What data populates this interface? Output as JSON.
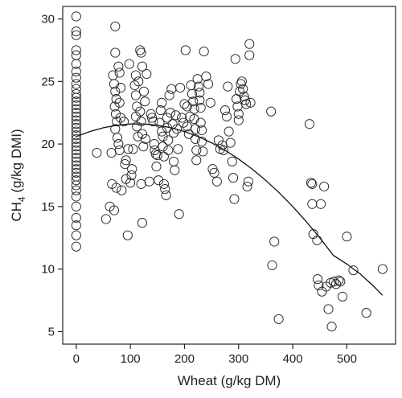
{
  "chart_data": {
    "type": "scatter",
    "title": "",
    "xlabel": "Wheat (g/kg DM)",
    "ylabel_main": "CH",
    "ylabel_sub": "4",
    "ylabel_rest": " (g/kg DMI)",
    "xlim": [
      -25,
      590
    ],
    "ylim": [
      4,
      31
    ],
    "xticks": [
      0,
      100,
      200,
      300,
      400,
      500
    ],
    "yticks": [
      5,
      10,
      15,
      20,
      25,
      30
    ],
    "grid": false,
    "legend": "none",
    "marker": "open-circle",
    "points": [
      [
        0,
        30.2
      ],
      [
        0,
        29
      ],
      [
        0,
        28.7
      ],
      [
        0,
        27.5
      ],
      [
        0,
        27.1
      ],
      [
        0,
        26.4
      ],
      [
        0,
        25.8
      ],
      [
        0,
        25.3
      ],
      [
        0,
        24.8
      ],
      [
        0,
        24.4
      ],
      [
        0,
        24
      ],
      [
        0,
        23.7
      ],
      [
        0,
        23.4
      ],
      [
        0,
        23.1
      ],
      [
        0,
        22.8
      ],
      [
        0,
        22.5
      ],
      [
        0,
        22.2
      ],
      [
        0,
        21.9
      ],
      [
        0,
        21.6
      ],
      [
        0,
        21.3
      ],
      [
        0,
        21
      ],
      [
        0,
        20.7
      ],
      [
        0,
        20.4
      ],
      [
        0,
        20.1
      ],
      [
        0,
        19.8
      ],
      [
        0,
        19.5
      ],
      [
        0,
        19.2
      ],
      [
        0,
        18.9
      ],
      [
        0,
        18.6
      ],
      [
        0,
        18.3
      ],
      [
        0,
        18
      ],
      [
        0,
        17.7
      ],
      [
        0,
        17.4
      ],
      [
        0,
        17.1
      ],
      [
        0,
        16.7
      ],
      [
        0,
        16.3
      ],
      [
        0,
        15.8
      ],
      [
        0,
        15
      ],
      [
        0,
        14.1
      ],
      [
        0,
        13.5
      ],
      [
        0,
        12.7
      ],
      [
        0,
        11.8
      ],
      [
        38,
        19.3
      ],
      [
        55,
        14
      ],
      [
        62,
        15
      ],
      [
        65,
        19.3
      ],
      [
        66,
        16.8
      ],
      [
        70,
        14.7
      ],
      [
        72,
        29.4
      ],
      [
        72,
        27.3
      ],
      [
        74,
        16.5
      ],
      [
        78,
        26.2
      ],
      [
        68,
        25.5
      ],
      [
        70,
        24.8
      ],
      [
        72,
        24.2
      ],
      [
        74,
        23.6
      ],
      [
        71,
        23
      ],
      [
        73,
        22.4
      ],
      [
        75,
        21.8
      ],
      [
        72,
        21.2
      ],
      [
        76,
        20.5
      ],
      [
        78,
        20
      ],
      [
        80,
        25.7
      ],
      [
        82,
        24.5
      ],
      [
        80,
        23.3
      ],
      [
        82,
        22.1
      ],
      [
        80,
        19.5
      ],
      [
        84,
        16.3
      ],
      [
        88,
        21.8
      ],
      [
        90,
        18.4
      ],
      [
        92,
        18.7
      ],
      [
        95,
        12.7
      ],
      [
        92,
        17.2
      ],
      [
        96,
        19.6
      ],
      [
        98,
        26.4
      ],
      [
        100,
        16.9
      ],
      [
        102,
        17.5
      ],
      [
        103,
        18
      ],
      [
        105,
        19.6
      ],
      [
        108,
        24.7
      ],
      [
        110,
        23.9
      ],
      [
        112,
        23
      ],
      [
        110,
        22.2
      ],
      [
        112,
        21.4
      ],
      [
        114,
        20.6
      ],
      [
        110,
        25.5
      ],
      [
        115,
        25
      ],
      [
        118,
        27.5
      ],
      [
        120,
        27.3
      ],
      [
        122,
        26.2
      ],
      [
        118,
        22.6
      ],
      [
        120,
        21.8
      ],
      [
        122,
        20.8
      ],
      [
        124,
        19.8
      ],
      [
        120,
        16.8
      ],
      [
        122,
        13.7
      ],
      [
        125,
        24.2
      ],
      [
        127,
        23.4
      ],
      [
        130,
        25.6
      ],
      [
        128,
        20.4
      ],
      [
        135,
        17
      ],
      [
        138,
        22.4
      ],
      [
        140,
        22.1
      ],
      [
        142,
        21.8
      ],
      [
        144,
        20
      ],
      [
        145,
        19.5
      ],
      [
        147,
        19.2
      ],
      [
        150,
        19.1
      ],
      [
        148,
        18.2
      ],
      [
        152,
        17.1
      ],
      [
        154,
        21.7
      ],
      [
        156,
        22.7
      ],
      [
        158,
        23.3
      ],
      [
        158,
        21
      ],
      [
        160,
        20.6
      ],
      [
        160,
        19.8
      ],
      [
        162,
        19
      ],
      [
        162,
        16.8
      ],
      [
        164,
        16.4
      ],
      [
        166,
        15.9
      ],
      [
        168,
        22.1
      ],
      [
        168,
        21.3
      ],
      [
        170,
        20.3
      ],
      [
        170,
        19.5
      ],
      [
        172,
        23.9
      ],
      [
        174,
        22.5
      ],
      [
        176,
        24.4
      ],
      [
        178,
        21.6
      ],
      [
        180,
        20.9
      ],
      [
        180,
        18.6
      ],
      [
        182,
        17.9
      ],
      [
        184,
        22.3
      ],
      [
        186,
        21.2
      ],
      [
        188,
        19.6
      ],
      [
        190,
        14.4
      ],
      [
        192,
        24.5
      ],
      [
        195,
        22.1
      ],
      [
        198,
        21.7
      ],
      [
        200,
        23.2
      ],
      [
        202,
        27.5
      ],
      [
        205,
        23
      ],
      [
        205,
        21.4
      ],
      [
        208,
        20.8
      ],
      [
        210,
        22.2
      ],
      [
        212,
        24.7
      ],
      [
        214,
        24
      ],
      [
        216,
        23.4
      ],
      [
        218,
        22.8
      ],
      [
        218,
        22
      ],
      [
        220,
        21.2
      ],
      [
        220,
        20.4
      ],
      [
        222,
        19.5
      ],
      [
        222,
        18.7
      ],
      [
        224,
        25.2
      ],
      [
        226,
        24.6
      ],
      [
        228,
        24.1
      ],
      [
        228,
        23.5
      ],
      [
        230,
        22.9
      ],
      [
        230,
        21.7
      ],
      [
        232,
        21.1
      ],
      [
        232,
        20.2
      ],
      [
        234,
        19.4
      ],
      [
        236,
        27.4
      ],
      [
        240,
        25.4
      ],
      [
        244,
        24.8
      ],
      [
        248,
        23.3
      ],
      [
        252,
        18
      ],
      [
        255,
        17.7
      ],
      [
        260,
        17
      ],
      [
        263,
        20.3
      ],
      [
        266,
        19.6
      ],
      [
        270,
        19.9
      ],
      [
        272,
        19.5
      ],
      [
        275,
        22.7
      ],
      [
        278,
        22.2
      ],
      [
        280,
        24.6
      ],
      [
        282,
        21
      ],
      [
        285,
        20.1
      ],
      [
        288,
        18.6
      ],
      [
        290,
        17.3
      ],
      [
        292,
        15.6
      ],
      [
        294,
        26.8
      ],
      [
        296,
        23.6
      ],
      [
        298,
        23
      ],
      [
        300,
        22.4
      ],
      [
        300,
        21.9
      ],
      [
        302,
        24.2
      ],
      [
        304,
        24.8
      ],
      [
        306,
        25
      ],
      [
        308,
        24.4
      ],
      [
        310,
        23.8
      ],
      [
        312,
        23.5
      ],
      [
        314,
        23.2
      ],
      [
        316,
        16.6
      ],
      [
        318,
        17
      ],
      [
        320,
        27.1
      ],
      [
        320,
        28
      ],
      [
        322,
        23.3
      ],
      [
        360,
        22.6
      ],
      [
        362,
        10.3
      ],
      [
        366,
        12.2
      ],
      [
        374,
        6
      ],
      [
        431,
        21.6
      ],
      [
        434,
        16.9
      ],
      [
        436,
        16.8
      ],
      [
        436,
        15.2
      ],
      [
        438,
        12.8
      ],
      [
        445,
        12.3
      ],
      [
        446,
        9.2
      ],
      [
        448,
        8.7
      ],
      [
        452,
        15.2
      ],
      [
        454,
        8.2
      ],
      [
        458,
        16.6
      ],
      [
        462,
        8.6
      ],
      [
        466,
        6.8
      ],
      [
        470,
        8.9
      ],
      [
        472,
        5.4
      ],
      [
        476,
        9
      ],
      [
        480,
        8.8
      ],
      [
        485,
        9.1
      ],
      [
        488,
        9
      ],
      [
        492,
        7.8
      ],
      [
        500,
        12.6
      ],
      [
        512,
        9.9
      ],
      [
        536,
        6.5
      ],
      [
        566,
        10
      ]
    ],
    "fit_curve": {
      "type": "quadratic",
      "x": [
        0,
        25,
        50,
        75,
        100,
        125,
        150,
        175,
        200,
        225,
        250,
        275,
        300,
        325,
        350,
        375,
        400,
        425,
        450,
        475,
        500,
        525,
        550,
        566
      ],
      "y": [
        20.6,
        21.0,
        21.3,
        21.5,
        21.6,
        21.6,
        21.5,
        21.3,
        21.0,
        20.6,
        20.1,
        19.5,
        18.8,
        18.0,
        17.1,
        16.1,
        15.0,
        13.8,
        12.5,
        11.1,
        10.4,
        9.6,
        8.6,
        7.9
      ]
    }
  }
}
